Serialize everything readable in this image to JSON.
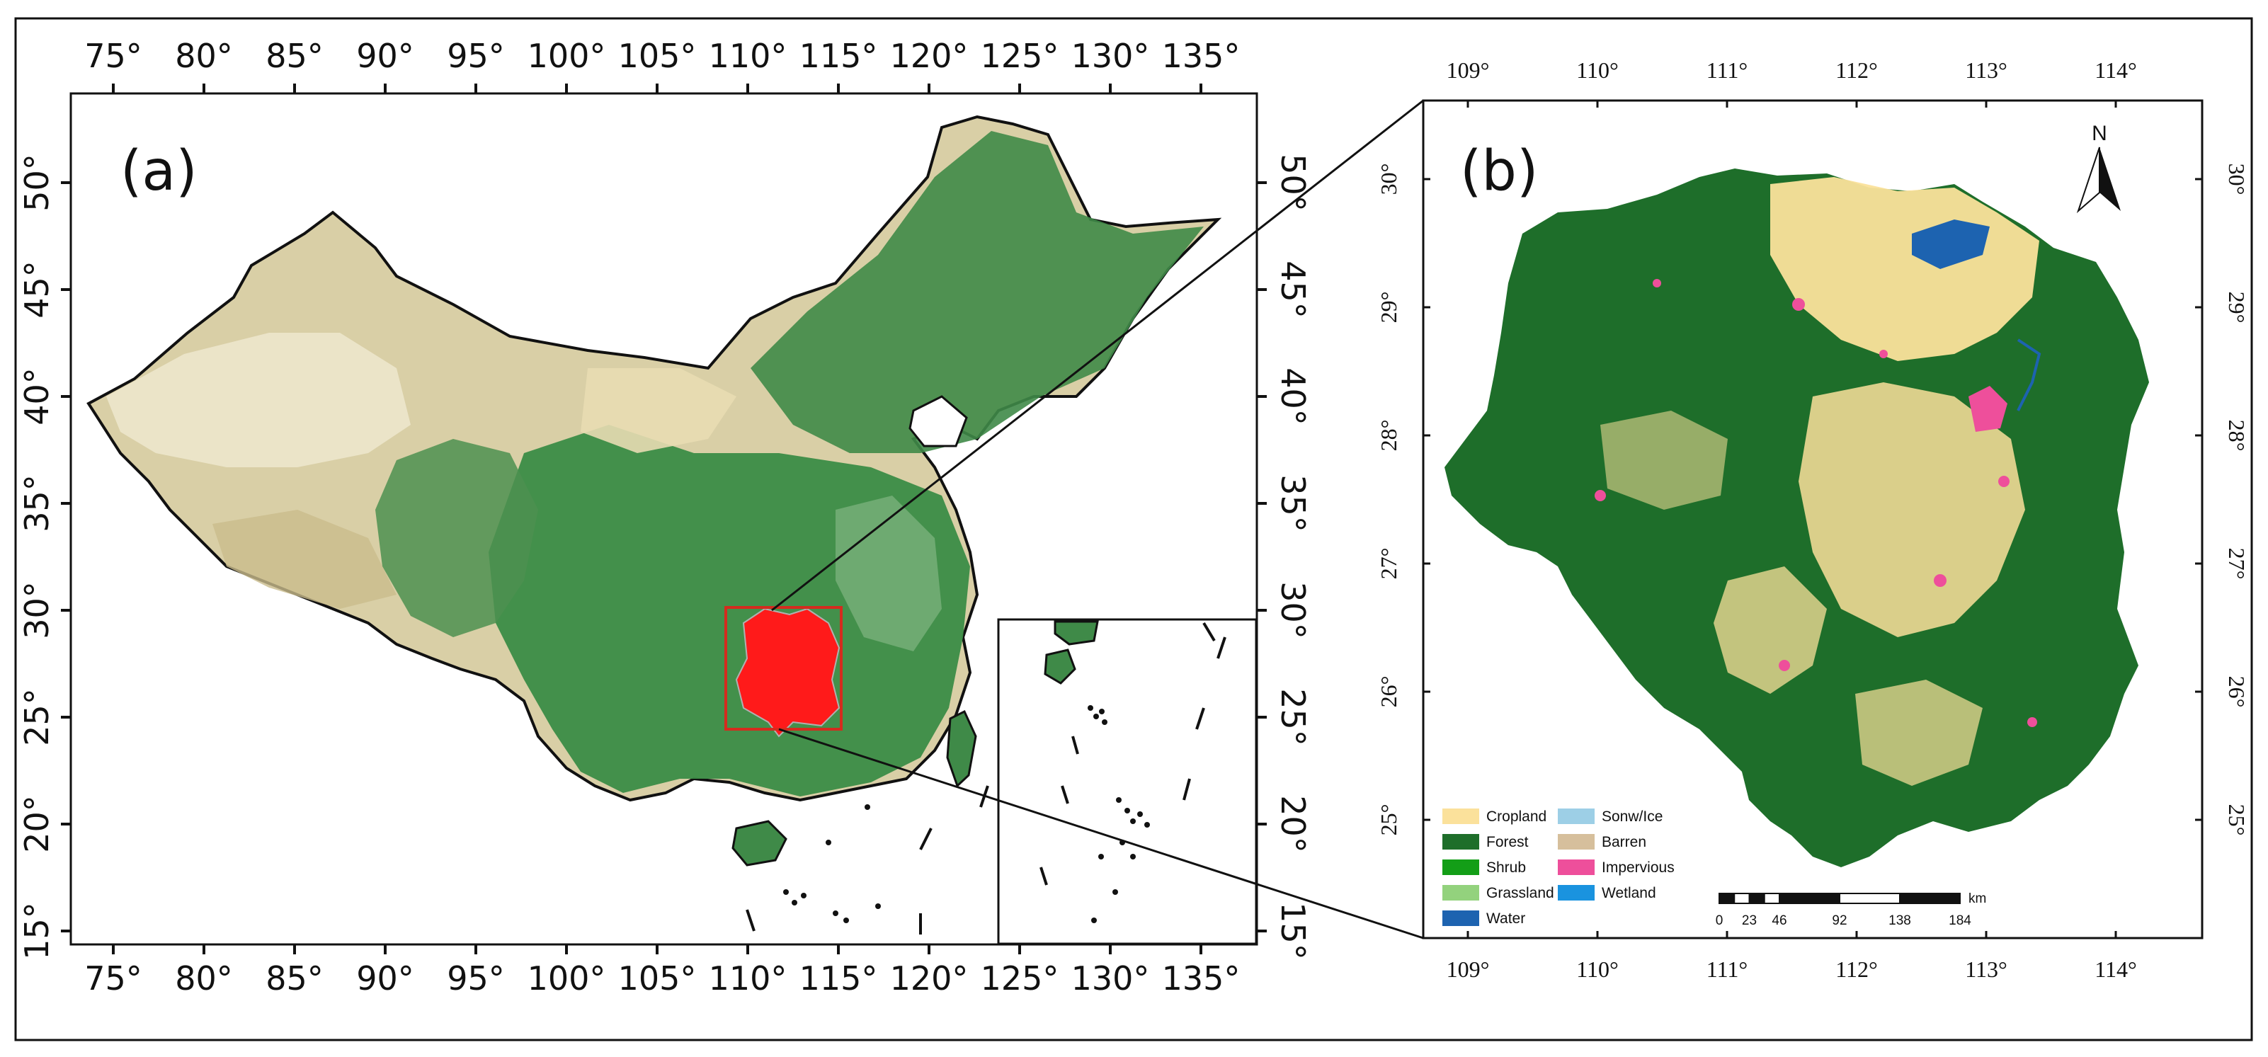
{
  "panel_a": {
    "label": "(a)",
    "lon_ticks": [
      "75°",
      "80°",
      "85°",
      "90°",
      "95°",
      "100°",
      "105°",
      "110°",
      "115°",
      "120°",
      "125°",
      "130°",
      "135°"
    ],
    "lat_ticks": [
      "15°",
      "20°",
      "25°",
      "30°",
      "35°",
      "40°",
      "45°",
      "50°"
    ]
  },
  "panel_b": {
    "label": "(b)",
    "lon_ticks": [
      "109°",
      "110°",
      "111°",
      "112°",
      "113°",
      "114°"
    ],
    "lat_ticks": [
      "25°",
      "26°",
      "27°",
      "28°",
      "29°",
      "30°"
    ],
    "north_label": "N",
    "legend": [
      {
        "label": "Cropland",
        "color": "#fbe19b"
      },
      {
        "label": "Forest",
        "color": "#1e6e2a"
      },
      {
        "label": "Shrub",
        "color": "#139e17"
      },
      {
        "label": "Grassland",
        "color": "#93d27d"
      },
      {
        "label": "Water",
        "color": "#1d63b0"
      },
      {
        "label": "Sonw/Ice",
        "color": "#9dcfe6"
      },
      {
        "label": "Barren",
        "color": "#d6bf9c"
      },
      {
        "label": "Impervious",
        "color": "#ee4f9b"
      },
      {
        "label": "Wetland",
        "color": "#1a93df"
      }
    ],
    "scale_bar": {
      "unit": "km",
      "ticks": [
        "0",
        "23",
        "46",
        "92",
        "138",
        "184"
      ]
    }
  },
  "colors": {
    "highlight_region": "#ff1a1a",
    "highlight_box": "#d52b1e"
  }
}
